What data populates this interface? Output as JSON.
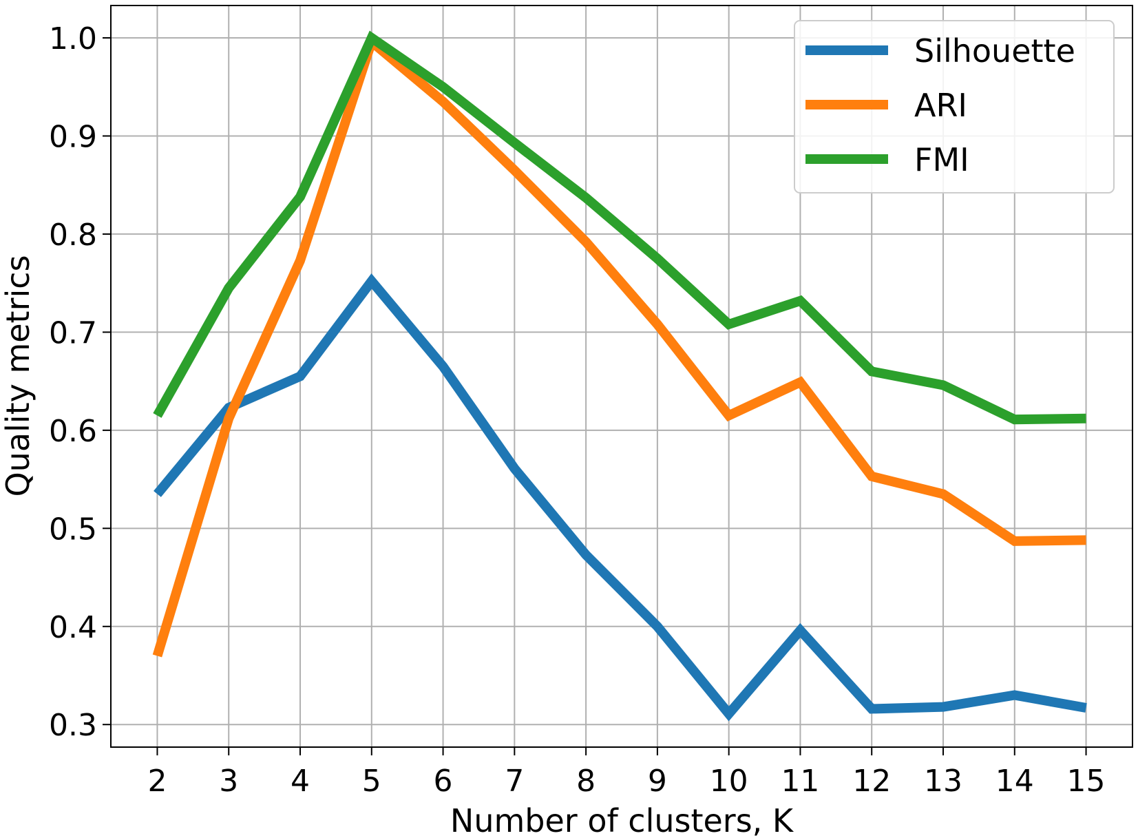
{
  "chart_data": {
    "type": "line",
    "title": "",
    "xlabel": "Number of clusters, K",
    "ylabel": "Quality metrics",
    "x": [
      2,
      3,
      4,
      5,
      6,
      7,
      8,
      9,
      10,
      11,
      12,
      13,
      14,
      15
    ],
    "xlim": [
      1.35,
      15.65
    ],
    "ylim": [
      0.277,
      1.033
    ],
    "xticks": [
      "2",
      "3",
      "4",
      "5",
      "6",
      "7",
      "8",
      "9",
      "10",
      "11",
      "12",
      "13",
      "14",
      "15"
    ],
    "yticks": [
      "0.3",
      "0.4",
      "0.5",
      "0.6",
      "0.7",
      "0.8",
      "0.9",
      "1.0"
    ],
    "grid": true,
    "legend_position": "top-right",
    "series": [
      {
        "name": "Silhouette",
        "color": "#1f77b4",
        "values": [
          0.535,
          0.623,
          0.655,
          0.752,
          0.665,
          0.561,
          0.473,
          0.4,
          0.311,
          0.396,
          0.316,
          0.318,
          0.33,
          0.317
        ]
      },
      {
        "name": "ARI",
        "color": "#ff7f0e",
        "values": [
          0.37,
          0.612,
          0.773,
          0.996,
          0.935,
          0.865,
          0.792,
          0.708,
          0.615,
          0.649,
          0.553,
          0.535,
          0.487,
          0.488
        ]
      },
      {
        "name": "FMI",
        "color": "#2ca02c",
        "values": [
          0.615,
          0.745,
          0.838,
          1.0,
          0.95,
          0.893,
          0.837,
          0.775,
          0.708,
          0.732,
          0.66,
          0.646,
          0.611,
          0.612
        ]
      }
    ]
  }
}
